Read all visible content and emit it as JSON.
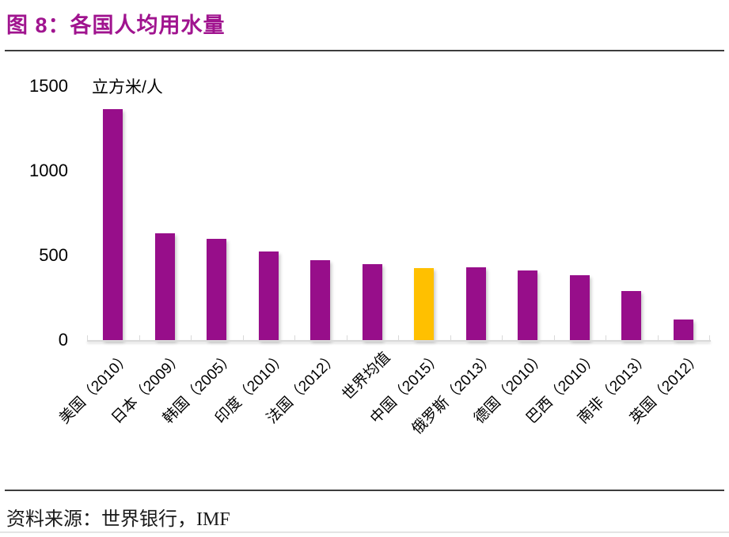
{
  "title": "图 8：各国人均用水量",
  "source": "资料来源：世界银行，IMF",
  "colors": {
    "title": "#a0148f",
    "bar": "#970e8a",
    "highlight": "#ffc000",
    "axis": "#d9d9d9"
  },
  "chart_data": {
    "type": "bar",
    "title": "图 8：各国人均用水量",
    "unit_label": "立方米/人",
    "categories": [
      "美国（2010）",
      "日本（2009）",
      "韩国（2005）",
      "印度（2010）",
      "法国（2012）",
      "世界均值",
      "中国（2015）",
      "俄罗斯（2013）",
      "德国（2010）",
      "巴西（2010）",
      "南非（2013）",
      "英国（2012）"
    ],
    "values": [
      1365,
      630,
      600,
      525,
      470,
      450,
      425,
      430,
      410,
      385,
      290,
      120
    ],
    "highlight_index": 6,
    "highlight_category": "中国（2015）",
    "yticks": [
      0,
      500,
      1000,
      1500
    ],
    "ylim": [
      0,
      1500
    ],
    "xlabel": "",
    "ylabel": "立方米/人",
    "grid": false,
    "legend": "none",
    "source_label": "资料来源：世界银行，IMF"
  }
}
